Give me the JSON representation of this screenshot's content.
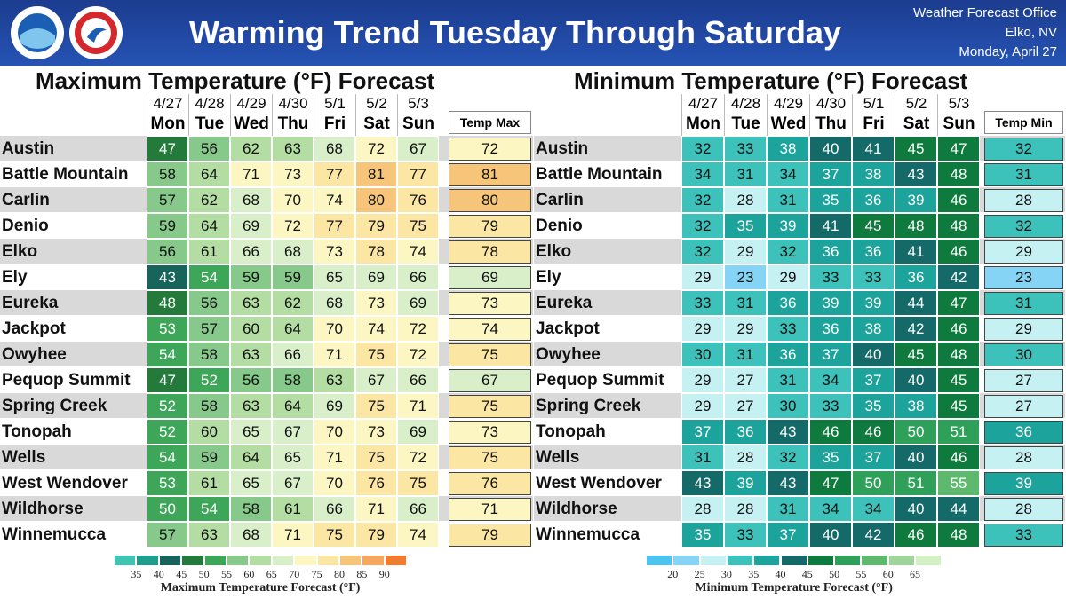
{
  "header": {
    "title": "Warming Trend Tuesday Through Saturday",
    "office": "Weather Forecast Office",
    "location": "Elko, NV",
    "date": "Monday, April 27"
  },
  "max_table": {
    "title": "Maximum Temperature (°F) Forecast",
    "dates": [
      "4/27",
      "4/28",
      "4/29",
      "4/30",
      "5/1",
      "5/2",
      "5/3"
    ],
    "days": [
      "Mon",
      "Tue",
      "Wed",
      "Thu",
      "Fri",
      "Sat",
      "Sun"
    ],
    "summary_header": "Temp Max",
    "rows": [
      {
        "station": "Austin",
        "values": [
          47,
          56,
          62,
          63,
          68,
          72,
          67
        ],
        "summary": 72
      },
      {
        "station": "Battle Mountain",
        "values": [
          58,
          64,
          71,
          73,
          77,
          81,
          77
        ],
        "summary": 81
      },
      {
        "station": "Carlin",
        "values": [
          57,
          62,
          68,
          70,
          74,
          80,
          76
        ],
        "summary": 80
      },
      {
        "station": "Denio",
        "values": [
          59,
          64,
          69,
          72,
          77,
          79,
          75
        ],
        "summary": 79
      },
      {
        "station": "Elko",
        "values": [
          56,
          61,
          66,
          68,
          73,
          78,
          74
        ],
        "summary": 78
      },
      {
        "station": "Ely",
        "values": [
          43,
          54,
          59,
          59,
          65,
          69,
          66
        ],
        "summary": 69
      },
      {
        "station": "Eureka",
        "values": [
          48,
          56,
          63,
          62,
          68,
          73,
          69
        ],
        "summary": 73
      },
      {
        "station": "Jackpot",
        "values": [
          53,
          57,
          60,
          64,
          70,
          74,
          72
        ],
        "summary": 74
      },
      {
        "station": "Owyhee",
        "values": [
          54,
          58,
          63,
          66,
          71,
          75,
          72
        ],
        "summary": 75
      },
      {
        "station": "Pequop Summit",
        "values": [
          47,
          52,
          56,
          58,
          63,
          67,
          66
        ],
        "summary": 67
      },
      {
        "station": "Spring Creek",
        "values": [
          52,
          58,
          63,
          64,
          69,
          75,
          71
        ],
        "summary": 75
      },
      {
        "station": "Tonopah",
        "values": [
          52,
          60,
          65,
          67,
          70,
          73,
          69
        ],
        "summary": 73
      },
      {
        "station": "Wells",
        "values": [
          54,
          59,
          64,
          65,
          71,
          75,
          72
        ],
        "summary": 75
      },
      {
        "station": "West Wendover",
        "values": [
          53,
          61,
          65,
          67,
          70,
          76,
          75
        ],
        "summary": 76
      },
      {
        "station": "Wildhorse",
        "values": [
          50,
          54,
          58,
          61,
          66,
          71,
          66
        ],
        "summary": 71
      },
      {
        "station": "Winnemucca",
        "values": [
          57,
          63,
          68,
          71,
          75,
          79,
          74
        ],
        "summary": 79
      }
    ]
  },
  "max_legend": {
    "title": "Maximum Temperature Forecast (°F)",
    "ticks": [
      35,
      40,
      45,
      50,
      55,
      60,
      65,
      70,
      75,
      80,
      85,
      90
    ],
    "colors": [
      "#40c4b4",
      "#1f9e8e",
      "#17645a",
      "#237a3b",
      "#3ea658",
      "#86c98a",
      "#b3dda3",
      "#d8efca",
      "#fbf6c2",
      "#fce6a4",
      "#f7c57a",
      "#f5a75e",
      "#f07c30"
    ]
  },
  "min_table": {
    "title": "Minimum Temperature (°F) Forecast",
    "dates": [
      "4/27",
      "4/28",
      "4/29",
      "4/30",
      "5/1",
      "5/2",
      "5/3"
    ],
    "days": [
      "Mon",
      "Tue",
      "Wed",
      "Thu",
      "Fri",
      "Sat",
      "Sun"
    ],
    "summary_header": "Temp Min",
    "rows": [
      {
        "station": "Austin",
        "values": [
          32,
          33,
          38,
          40,
          41,
          45,
          47
        ],
        "summary": 32
      },
      {
        "station": "Battle Mountain",
        "values": [
          34,
          31,
          34,
          37,
          38,
          43,
          48
        ],
        "summary": 31
      },
      {
        "station": "Carlin",
        "values": [
          32,
          28,
          31,
          35,
          36,
          39,
          46
        ],
        "summary": 28
      },
      {
        "station": "Denio",
        "values": [
          32,
          35,
          39,
          41,
          45,
          48,
          48
        ],
        "summary": 32
      },
      {
        "station": "Elko",
        "values": [
          32,
          29,
          32,
          36,
          36,
          41,
          46
        ],
        "summary": 29
      },
      {
        "station": "Ely",
        "values": [
          29,
          23,
          29,
          33,
          33,
          36,
          42
        ],
        "summary": 23
      },
      {
        "station": "Eureka",
        "values": [
          33,
          31,
          36,
          39,
          39,
          44,
          47
        ],
        "summary": 31
      },
      {
        "station": "Jackpot",
        "values": [
          29,
          29,
          33,
          36,
          38,
          42,
          46
        ],
        "summary": 29
      },
      {
        "station": "Owyhee",
        "values": [
          30,
          31,
          36,
          37,
          40,
          45,
          48
        ],
        "summary": 30
      },
      {
        "station": "Pequop Summit",
        "values": [
          29,
          27,
          31,
          34,
          37,
          40,
          45
        ],
        "summary": 27
      },
      {
        "station": "Spring Creek",
        "values": [
          29,
          27,
          30,
          33,
          35,
          38,
          45
        ],
        "summary": 27
      },
      {
        "station": "Tonopah",
        "values": [
          37,
          36,
          43,
          46,
          46,
          50,
          51
        ],
        "summary": 36
      },
      {
        "station": "Wells",
        "values": [
          31,
          28,
          32,
          35,
          37,
          40,
          46
        ],
        "summary": 28
      },
      {
        "station": "West Wendover",
        "values": [
          43,
          39,
          43,
          47,
          50,
          51,
          55
        ],
        "summary": 39
      },
      {
        "station": "Wildhorse",
        "values": [
          28,
          28,
          31,
          34,
          34,
          40,
          44
        ],
        "summary": 28
      },
      {
        "station": "Winnemucca",
        "values": [
          35,
          33,
          37,
          40,
          42,
          46,
          48
        ],
        "summary": 33
      }
    ]
  },
  "min_legend": {
    "title": "Minimum Temperature Forecast (°F)",
    "ticks": [
      20,
      25,
      30,
      35,
      40,
      45,
      50,
      55,
      60,
      65
    ],
    "colors": [
      "#4dc3f0",
      "#86d4f5",
      "#c6f1f3",
      "#3cc2ba",
      "#1ca39b",
      "#146a68",
      "#0f7a3e",
      "#2fa05a",
      "#5eb86d",
      "#9fd59a",
      "#d4f0c5"
    ]
  }
}
